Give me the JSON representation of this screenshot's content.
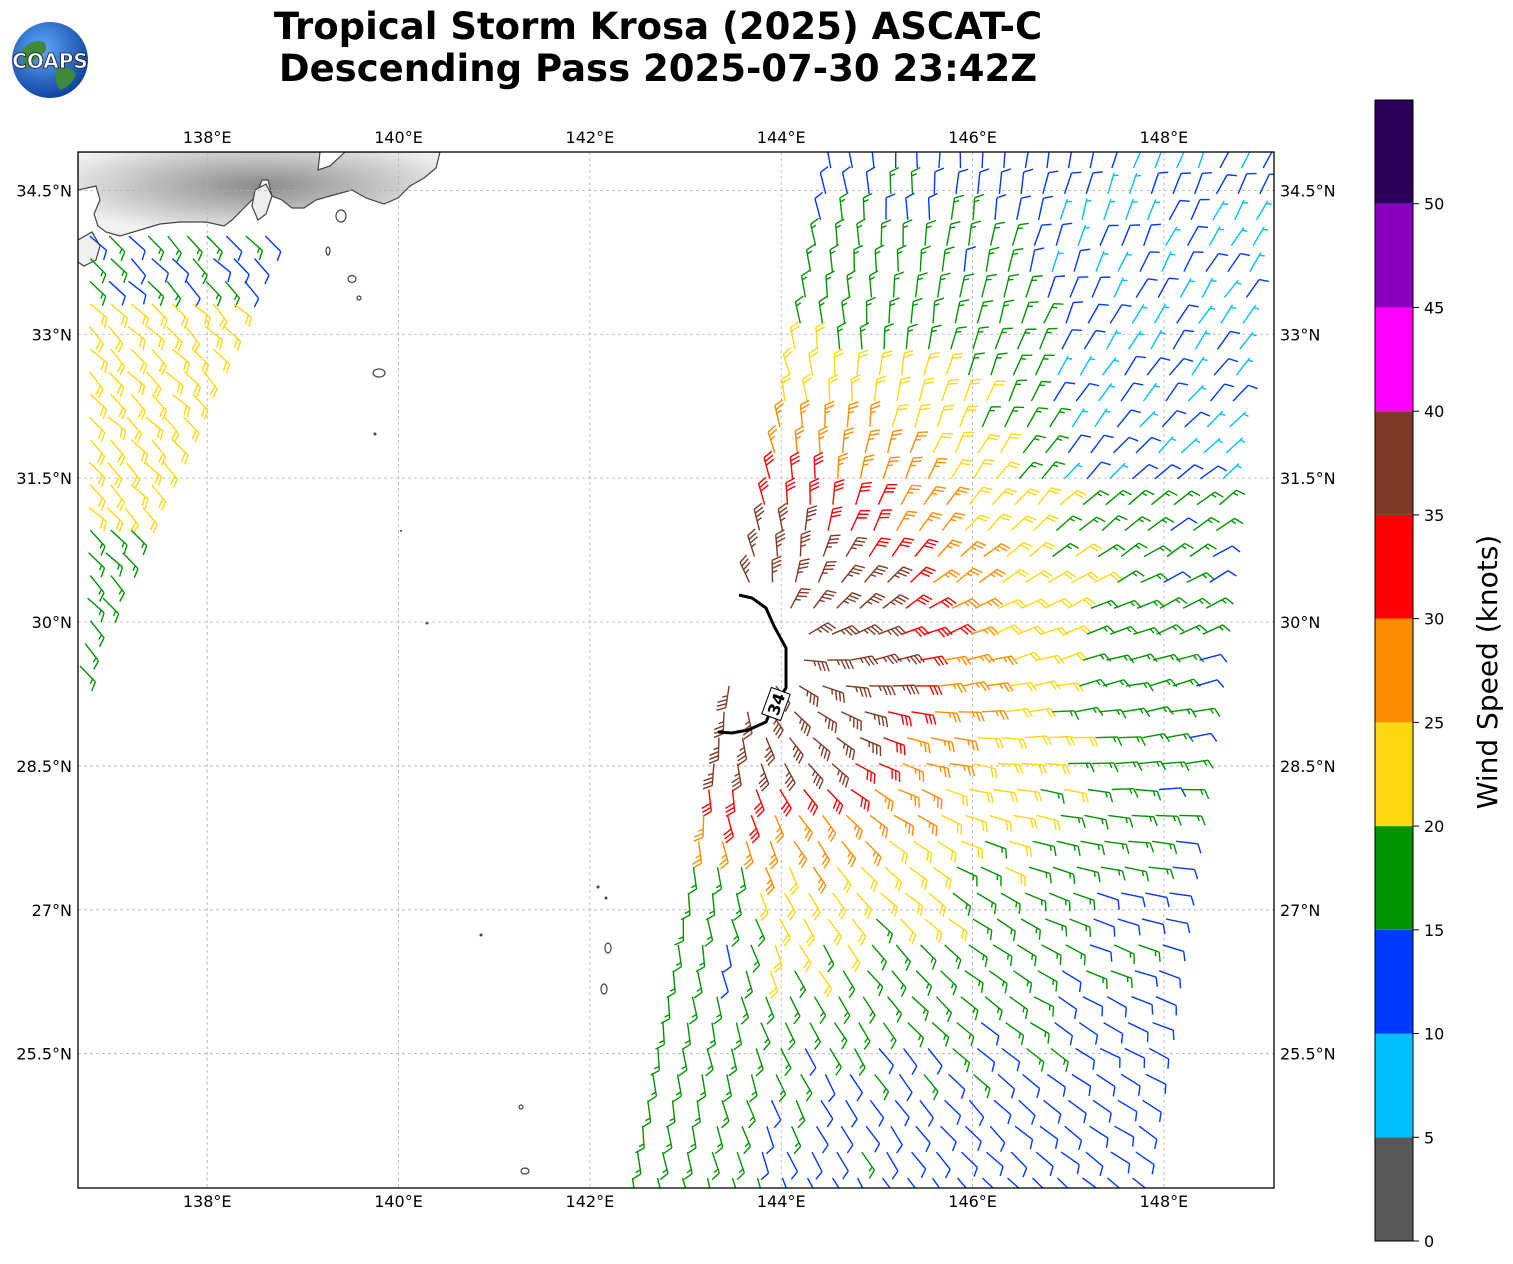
{
  "title": {
    "line1": "Tropical Storm Krosa (2025) ASCAT-C",
    "line2": "Descending Pass 2025-07-30 23:42Z"
  },
  "logo": {
    "text": "COAPS",
    "icon": "globe-icon"
  },
  "map": {
    "lon_range": [
      136.65,
      149.15
    ],
    "lat_range": [
      24.1,
      34.9
    ],
    "lon_ticks": [
      138,
      140,
      142,
      144,
      146,
      148
    ],
    "lon_tick_labels": [
      "138°E",
      "140°E",
      "142°E",
      "144°E",
      "146°E",
      "148°E"
    ],
    "lat_ticks": [
      25.5,
      27,
      28.5,
      30,
      31.5,
      33,
      34.5
    ],
    "lat_tick_labels": [
      "25.5°N",
      "27°N",
      "28.5°N",
      "30°N",
      "31.5°N",
      "33°N",
      "34.5°N"
    ],
    "gridlines": true,
    "center": {
      "lon": 143.75,
      "lat": 29.8
    },
    "contour_label": "34",
    "land_color": "#ffffff",
    "coast_color": "#444444"
  },
  "colorbar": {
    "label": "Wind Speed (knots)",
    "ticks": [
      0,
      5,
      10,
      15,
      20,
      25,
      30,
      35,
      40,
      45,
      50
    ],
    "tick_labels": [
      "0",
      "5",
      "10",
      "15",
      "20",
      "25",
      "30",
      "35",
      "40",
      "45",
      "50"
    ],
    "max": 55,
    "colors": [
      "#585858",
      "#00bfff",
      "#0039ff",
      "#009500",
      "#ffd70f",
      "#ff8c00",
      "#ff0000",
      "#7f3a25",
      "#ff00ff",
      "#8b00c0",
      "#2a005a"
    ]
  }
}
